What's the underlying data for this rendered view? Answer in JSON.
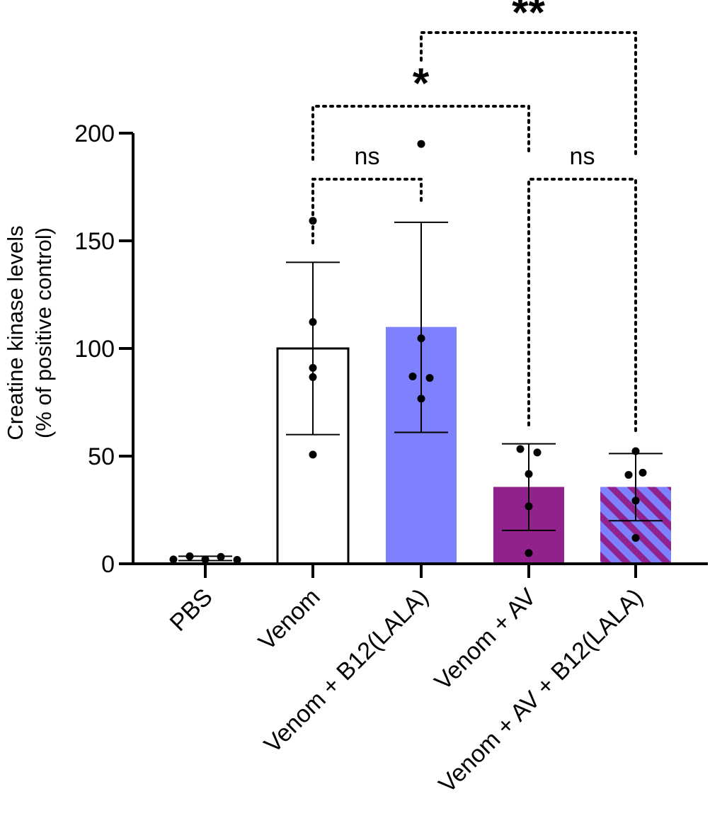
{
  "chart_data": {
    "type": "bar",
    "categories": [
      "PBS",
      "Venom",
      "Venom + B12(LALA)",
      "Venom + AV",
      "Venom + AV + B12(LALA)"
    ],
    "values": [
      2.5,
      100,
      110,
      35.7,
      35.7
    ],
    "error_low": [
      1.5,
      60,
      61,
      15.5,
      20
    ],
    "error_high": [
      3.5,
      140,
      158.6,
      55.7,
      51.2
    ],
    "points": [
      [
        2,
        3.5,
        2,
        3.2,
        1.8
      ],
      [
        159.3,
        112.3,
        91,
        86.7,
        50.7
      ],
      [
        195,
        104.7,
        87,
        86.3,
        76.7
      ],
      [
        53.3,
        51.7,
        41.7,
        26.7,
        5
      ],
      [
        52.3,
        42.3,
        41.3,
        29.3,
        12
      ]
    ],
    "ylabel_lines": [
      "Creatine kinase levels",
      "(% of positive control)"
    ],
    "xlabel": "",
    "ylim": [
      0,
      200
    ],
    "yticks": [
      "0",
      "50",
      "100",
      "150",
      "200"
    ],
    "grid": false,
    "bar_styles": [
      {
        "fill": "#ffffff",
        "pattern": "none"
      },
      {
        "fill": "#ffffff",
        "pattern": "none"
      },
      {
        "fill": "#7f80fd",
        "pattern": "none"
      },
      {
        "fill": "#91218c",
        "pattern": "none"
      },
      {
        "fill": "#7f80fd",
        "pattern": "stripes",
        "stripe_color": "#91218c"
      }
    ],
    "significance": [
      {
        "from": 1,
        "to": 2,
        "label": "ns"
      },
      {
        "from": 3,
        "to": 4,
        "label": "ns"
      },
      {
        "from": 1,
        "to": 3,
        "label": "*"
      },
      {
        "from": 2,
        "to": 4,
        "label": "**"
      }
    ]
  },
  "colors": {
    "axis": "#000000",
    "venom_b12": "#7f80fd",
    "venom_av": "#91218c"
  }
}
